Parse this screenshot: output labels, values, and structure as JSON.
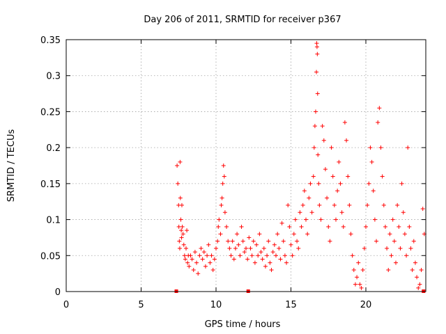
{
  "chart_data": {
    "type": "scatter",
    "title": "Day 206 of 2011, SRMTID for receiver p367",
    "xlabel": "GPS time / hours",
    "ylabel": "SRMTID / TECUs",
    "xlim": [
      0,
      24
    ],
    "ylim": [
      0,
      0.35
    ],
    "xticks": [
      0,
      5,
      10,
      15,
      20
    ],
    "yticks": [
      0,
      0.05,
      0.1,
      0.15,
      0.2,
      0.25,
      0.3,
      0.35
    ],
    "xtick_labels": [
      "0",
      "5",
      "10",
      "15",
      "20"
    ],
    "ytick_labels": [
      "0",
      "0.05",
      "0.1",
      "0.15",
      "0.2",
      "0.25",
      "0.3",
      "0.35"
    ],
    "grid": true,
    "marker": "+",
    "color": "#ff0000",
    "gap_markers": [
      [
        7.35,
        0.0
      ],
      [
        12.15,
        0.0
      ],
      [
        23.85,
        0.0
      ]
    ],
    "series": [
      {
        "name": "SRMTID",
        "points": [
          [
            7.4,
            0.175
          ],
          [
            7.45,
            0.15
          ],
          [
            7.5,
            0.12
          ],
          [
            7.52,
            0.09
          ],
          [
            7.55,
            0.07
          ],
          [
            7.58,
            0.06
          ],
          [
            7.6,
            0.18
          ],
          [
            7.62,
            0.13
          ],
          [
            7.65,
            0.1
          ],
          [
            7.68,
            0.085
          ],
          [
            7.7,
            0.075
          ],
          [
            7.72,
            0.12
          ],
          [
            7.75,
            0.09
          ],
          [
            7.8,
            0.08
          ],
          [
            7.85,
            0.065
          ],
          [
            7.9,
            0.05
          ],
          [
            7.95,
            0.045
          ],
          [
            8.0,
            0.06
          ],
          [
            8.05,
            0.085
          ],
          [
            8.1,
            0.04
          ],
          [
            8.15,
            0.05
          ],
          [
            8.2,
            0.035
          ],
          [
            8.3,
            0.05
          ],
          [
            8.4,
            0.045
          ],
          [
            8.5,
            0.03
          ],
          [
            8.6,
            0.055
          ],
          [
            8.7,
            0.04
          ],
          [
            8.8,
            0.025
          ],
          [
            8.9,
            0.05
          ],
          [
            9.0,
            0.06
          ],
          [
            9.1,
            0.045
          ],
          [
            9.2,
            0.055
          ],
          [
            9.3,
            0.035
          ],
          [
            9.4,
            0.05
          ],
          [
            9.5,
            0.065
          ],
          [
            9.6,
            0.04
          ],
          [
            9.7,
            0.05
          ],
          [
            9.8,
            0.03
          ],
          [
            9.9,
            0.045
          ],
          [
            10.0,
            0.06
          ],
          [
            10.1,
            0.07
          ],
          [
            10.15,
            0.09
          ],
          [
            10.2,
            0.1
          ],
          [
            10.3,
            0.08
          ],
          [
            10.35,
            0.12
          ],
          [
            10.4,
            0.13
          ],
          [
            10.45,
            0.15
          ],
          [
            10.5,
            0.175
          ],
          [
            10.55,
            0.16
          ],
          [
            10.6,
            0.11
          ],
          [
            10.7,
            0.09
          ],
          [
            10.8,
            0.07
          ],
          [
            10.9,
            0.06
          ],
          [
            11.0,
            0.05
          ],
          [
            11.1,
            0.07
          ],
          [
            11.2,
            0.045
          ],
          [
            11.3,
            0.06
          ],
          [
            11.4,
            0.08
          ],
          [
            11.5,
            0.065
          ],
          [
            11.6,
            0.05
          ],
          [
            11.7,
            0.09
          ],
          [
            11.8,
            0.07
          ],
          [
            11.9,
            0.055
          ],
          [
            12.0,
            0.06
          ],
          [
            12.1,
            0.045
          ],
          [
            12.2,
            0.075
          ],
          [
            12.3,
            0.06
          ],
          [
            12.4,
            0.05
          ],
          [
            12.5,
            0.07
          ],
          [
            12.6,
            0.04
          ],
          [
            12.7,
            0.065
          ],
          [
            12.8,
            0.05
          ],
          [
            12.9,
            0.08
          ],
          [
            13.0,
            0.055
          ],
          [
            13.1,
            0.045
          ],
          [
            13.2,
            0.06
          ],
          [
            13.3,
            0.035
          ],
          [
            13.4,
            0.05
          ],
          [
            13.5,
            0.07
          ],
          [
            13.6,
            0.04
          ],
          [
            13.7,
            0.03
          ],
          [
            13.8,
            0.055
          ],
          [
            13.9,
            0.065
          ],
          [
            14.0,
            0.05
          ],
          [
            14.1,
            0.08
          ],
          [
            14.2,
            0.06
          ],
          [
            14.3,
            0.045
          ],
          [
            14.4,
            0.095
          ],
          [
            14.5,
            0.07
          ],
          [
            14.6,
            0.05
          ],
          [
            14.7,
            0.04
          ],
          [
            14.8,
            0.12
          ],
          [
            14.9,
            0.09
          ],
          [
            15.0,
            0.065
          ],
          [
            15.1,
            0.05
          ],
          [
            15.2,
            0.08
          ],
          [
            15.3,
            0.1
          ],
          [
            15.4,
            0.07
          ],
          [
            15.5,
            0.06
          ],
          [
            15.6,
            0.11
          ],
          [
            15.7,
            0.09
          ],
          [
            15.8,
            0.12
          ],
          [
            15.9,
            0.14
          ],
          [
            16.0,
            0.1
          ],
          [
            16.1,
            0.08
          ],
          [
            16.2,
            0.13
          ],
          [
            16.3,
            0.15
          ],
          [
            16.4,
            0.11
          ],
          [
            16.5,
            0.16
          ],
          [
            16.55,
            0.2
          ],
          [
            16.6,
            0.23
          ],
          [
            16.65,
            0.25
          ],
          [
            16.7,
            0.305
          ],
          [
            16.72,
            0.345
          ],
          [
            16.74,
            0.34
          ],
          [
            16.76,
            0.33
          ],
          [
            16.78,
            0.275
          ],
          [
            16.8,
            0.19
          ],
          [
            16.85,
            0.15
          ],
          [
            16.9,
            0.12
          ],
          [
            17.0,
            0.1
          ],
          [
            17.1,
            0.23
          ],
          [
            17.2,
            0.21
          ],
          [
            17.3,
            0.17
          ],
          [
            17.4,
            0.13
          ],
          [
            17.5,
            0.09
          ],
          [
            17.6,
            0.07
          ],
          [
            17.7,
            0.2
          ],
          [
            17.8,
            0.16
          ],
          [
            17.9,
            0.12
          ],
          [
            18.0,
            0.1
          ],
          [
            18.1,
            0.14
          ],
          [
            18.2,
            0.18
          ],
          [
            18.3,
            0.15
          ],
          [
            18.4,
            0.11
          ],
          [
            18.5,
            0.09
          ],
          [
            18.6,
            0.235
          ],
          [
            18.7,
            0.21
          ],
          [
            18.8,
            0.16
          ],
          [
            18.9,
            0.12
          ],
          [
            19.0,
            0.08
          ],
          [
            19.1,
            0.05
          ],
          [
            19.2,
            0.03
          ],
          [
            19.3,
            0.01
          ],
          [
            19.4,
            0.02
          ],
          [
            19.5,
            0.04
          ],
          [
            19.6,
            0.01
          ],
          [
            19.7,
            0.005
          ],
          [
            19.8,
            0.03
          ],
          [
            19.9,
            0.06
          ],
          [
            20.0,
            0.09
          ],
          [
            20.1,
            0.12
          ],
          [
            20.2,
            0.15
          ],
          [
            20.3,
            0.2
          ],
          [
            20.4,
            0.18
          ],
          [
            20.5,
            0.14
          ],
          [
            20.6,
            0.1
          ],
          [
            20.7,
            0.07
          ],
          [
            20.8,
            0.235
          ],
          [
            20.9,
            0.255
          ],
          [
            21.0,
            0.2
          ],
          [
            21.1,
            0.16
          ],
          [
            21.2,
            0.12
          ],
          [
            21.3,
            0.09
          ],
          [
            21.4,
            0.06
          ],
          [
            21.5,
            0.03
          ],
          [
            21.6,
            0.08
          ],
          [
            21.7,
            0.05
          ],
          [
            21.8,
            0.1
          ],
          [
            21.9,
            0.07
          ],
          [
            22.0,
            0.04
          ],
          [
            22.1,
            0.12
          ],
          [
            22.2,
            0.09
          ],
          [
            22.3,
            0.06
          ],
          [
            22.4,
            0.15
          ],
          [
            22.5,
            0.11
          ],
          [
            22.6,
            0.08
          ],
          [
            22.7,
            0.05
          ],
          [
            22.8,
            0.2
          ],
          [
            22.9,
            0.09
          ],
          [
            23.0,
            0.06
          ],
          [
            23.1,
            0.03
          ],
          [
            23.2,
            0.07
          ],
          [
            23.3,
            0.04
          ],
          [
            23.4,
            0.02
          ],
          [
            23.5,
            0.005
          ],
          [
            23.6,
            0.01
          ],
          [
            23.7,
            0.03
          ],
          [
            23.8,
            0.115
          ],
          [
            23.9,
            0.08
          ]
        ]
      }
    ]
  }
}
